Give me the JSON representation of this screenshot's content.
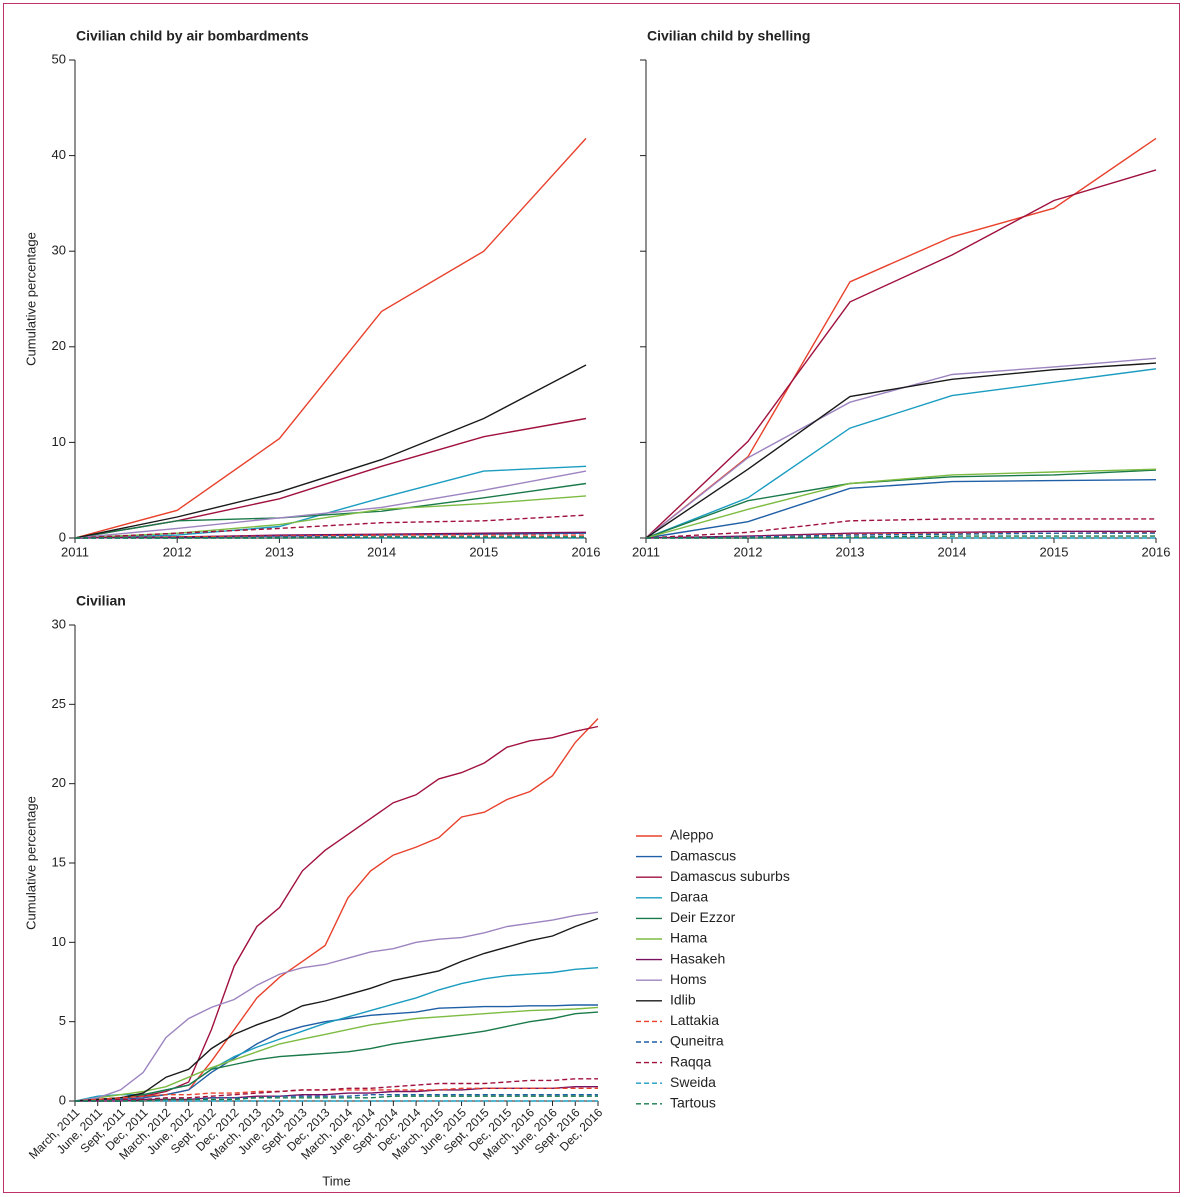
{
  "chart_data": [
    {
      "type": "line",
      "title": "Civilian child by air bombardments",
      "ylabel": "Cumulative percentage",
      "x": [
        2011,
        2012,
        2013,
        2014,
        2015,
        2016
      ],
      "xlim": [
        2011,
        2016
      ],
      "xticks": [
        2011,
        2012,
        2013,
        2014,
        2015,
        2016
      ],
      "ylim": [
        0,
        50
      ],
      "yticks": [
        0,
        10,
        20,
        30,
        40,
        50
      ],
      "series": [
        {
          "color": "#e8412c",
          "values": [
            0,
            2.9,
            10.4,
            23.7,
            30,
            41.8
          ]
        },
        {
          "color": "#1f5fa6",
          "values": [
            0,
            0.1,
            0.2,
            0.3,
            0.4,
            0.5
          ]
        },
        {
          "color": "#a0113e",
          "values": [
            0,
            1.8,
            4.1,
            7.5,
            10.6,
            12.5
          ]
        },
        {
          "color": "#1a9cc0",
          "values": [
            0,
            0.3,
            1.2,
            4.2,
            7,
            7.5
          ]
        },
        {
          "color": "#1a7a4a",
          "values": [
            0,
            1.8,
            2.1,
            2.8,
            4.2,
            5.7
          ]
        },
        {
          "color": "#7dbb42",
          "values": [
            0,
            0.5,
            1.4,
            3,
            3.6,
            4.4
          ]
        },
        {
          "color": "#7a1060",
          "values": [
            0,
            0.1,
            0.3,
            0.4,
            0.5,
            0.6
          ]
        },
        {
          "color": "#9d84c0",
          "values": [
            0,
            1,
            2.1,
            3.2,
            5,
            7
          ]
        },
        {
          "color": "#1a1a1a",
          "values": [
            0,
            2.2,
            4.8,
            8.2,
            12.5,
            18.1
          ]
        },
        {
          "color": "#e8412c",
          "dash": true,
          "values": [
            0,
            0.1,
            0.2,
            0.3,
            0.3,
            0.3
          ]
        },
        {
          "color": "#1f5fa6",
          "dash": true,
          "values": [
            0,
            0,
            0.1,
            0.1,
            0.1,
            0.1
          ]
        },
        {
          "color": "#a0113e",
          "dash": true,
          "values": [
            0,
            0.5,
            1,
            1.6,
            1.8,
            2.4
          ]
        },
        {
          "color": "#1a9cc0",
          "dash": true,
          "values": [
            0,
            0,
            0,
            0,
            0,
            0
          ]
        },
        {
          "color": "#1a7a4a",
          "dash": true,
          "values": [
            0,
            0,
            0,
            0.1,
            0.1,
            0.1
          ]
        }
      ]
    },
    {
      "type": "line",
      "title": "Civilian child by shelling",
      "x": [
        2011,
        2012,
        2013,
        2014,
        2015,
        2016
      ],
      "xlim": [
        2011,
        2016
      ],
      "xticks": [
        2011,
        2012,
        2013,
        2014,
        2015,
        2016
      ],
      "ylim": [
        0,
        50
      ],
      "yticks": [
        0,
        10,
        20,
        30,
        40,
        50
      ],
      "ytick_labels": false,
      "series": [
        {
          "color": "#e8412c",
          "values": [
            0,
            8.5,
            26.8,
            31.5,
            34.5,
            41.8
          ]
        },
        {
          "color": "#1f5fa6",
          "values": [
            0,
            1.7,
            5.2,
            5.9,
            6,
            6.1
          ]
        },
        {
          "color": "#a0113e",
          "values": [
            0,
            10.1,
            24.7,
            29.6,
            35.3,
            38.5
          ]
        },
        {
          "color": "#1a9cc0",
          "values": [
            0,
            4.2,
            11.5,
            14.9,
            16.3,
            17.7
          ]
        },
        {
          "color": "#1a7a4a",
          "values": [
            0,
            3.9,
            5.7,
            6.4,
            6.6,
            7.1
          ]
        },
        {
          "color": "#7dbb42",
          "values": [
            0,
            3,
            5.7,
            6.6,
            6.9,
            7.2
          ]
        },
        {
          "color": "#7a1060",
          "values": [
            0,
            0.2,
            0.5,
            0.6,
            0.7,
            0.7
          ]
        },
        {
          "color": "#9d84c0",
          "values": [
            0,
            8.4,
            14.2,
            17.1,
            17.9,
            18.8
          ]
        },
        {
          "color": "#1a1a1a",
          "values": [
            0,
            7.2,
            14.8,
            16.6,
            17.6,
            18.3
          ]
        },
        {
          "color": "#e8412c",
          "dash": true,
          "values": [
            0,
            0.1,
            0.4,
            0.5,
            0.5,
            0.6
          ]
        },
        {
          "color": "#1f5fa6",
          "dash": true,
          "values": [
            0,
            0.1,
            0.3,
            0.4,
            0.5,
            0.5
          ]
        },
        {
          "color": "#a0113e",
          "dash": true,
          "values": [
            0,
            0.6,
            1.8,
            2,
            2,
            2
          ]
        },
        {
          "color": "#1a9cc0",
          "dash": true,
          "values": [
            0,
            0,
            0,
            0,
            0,
            0
          ]
        },
        {
          "color": "#1a7a4a",
          "dash": true,
          "values": [
            0,
            0,
            0.1,
            0.2,
            0.2,
            0.2
          ]
        }
      ]
    },
    {
      "type": "line",
      "title": "Civilian",
      "ylabel": "Cumulative percentage",
      "xlabel": "Time",
      "legend": "right",
      "categories": [
        "March, 2011",
        "June, 2011",
        "Sept, 2011",
        "Dec, 2011",
        "March, 2012",
        "June, 2012",
        "Sept, 2012",
        "Dec, 2012",
        "March, 2013",
        "June, 2013",
        "Sept, 2013",
        "Dec, 2013",
        "March, 2014",
        "June, 2014",
        "Sept, 2014",
        "Dec, 2014",
        "March, 2015",
        "June, 2015",
        "Sept, 2015",
        "Dec, 2015",
        "March, 2016",
        "June, 2016",
        "Sept, 2016",
        "Dec, 2016"
      ],
      "ylim": [
        0,
        30
      ],
      "yticks": [
        0,
        5,
        10,
        15,
        20,
        25,
        30
      ],
      "series": [
        {
          "name": "Aleppo",
          "color": "#e8412c",
          "values": [
            0,
            0.1,
            0.2,
            0.3,
            0.4,
            0.7,
            2.5,
            4.5,
            6.5,
            7.8,
            8.8,
            9.8,
            12.8,
            14.5,
            15.5,
            16,
            16.6,
            17.9,
            18.2,
            19,
            19.5,
            20.5,
            22.6,
            24.1
          ]
        },
        {
          "name": "Damascus",
          "color": "#1f5fa6",
          "values": [
            0,
            0.1,
            0.1,
            0.2,
            0.4,
            0.7,
            1.8,
            2.7,
            3.6,
            4.3,
            4.7,
            5,
            5.2,
            5.4,
            5.5,
            5.6,
            5.85,
            5.9,
            5.95,
            5.95,
            6,
            6,
            6.05,
            6.05
          ]
        },
        {
          "name": "Damascus suburbs",
          "color": "#a0113e",
          "values": [
            0,
            0.1,
            0.2,
            0.3,
            0.6,
            1.2,
            4.5,
            8.5,
            11,
            12.2,
            14.5,
            15.8,
            16.8,
            17.8,
            18.8,
            19.3,
            20.3,
            20.7,
            21.3,
            22.3,
            22.7,
            22.9,
            23.3,
            23.6
          ]
        },
        {
          "name": "Daraa",
          "color": "#1a9cc0",
          "values": [
            0,
            0.3,
            0.4,
            0.4,
            0.7,
            1,
            2,
            2.8,
            3.4,
            3.9,
            4.4,
            4.9,
            5.3,
            5.7,
            6.1,
            6.5,
            7,
            7.4,
            7.7,
            7.9,
            8,
            8.1,
            8.3,
            8.4
          ]
        },
        {
          "name": "Deir Ezzor",
          "color": "#1a7a4a",
          "values": [
            0,
            0.1,
            0.2,
            0.4,
            0.7,
            1,
            2,
            2.3,
            2.6,
            2.8,
            2.9,
            3,
            3.1,
            3.3,
            3.6,
            3.8,
            4,
            4.2,
            4.4,
            4.7,
            5,
            5.2,
            5.5,
            5.6
          ]
        },
        {
          "name": "Hama",
          "color": "#7dbb42",
          "values": [
            0,
            0.2,
            0.4,
            0.6,
            0.9,
            1.5,
            2.1,
            2.6,
            3.1,
            3.6,
            3.9,
            4.2,
            4.5,
            4.8,
            5,
            5.2,
            5.3,
            5.4,
            5.5,
            5.6,
            5.7,
            5.75,
            5.8,
            5.9
          ]
        },
        {
          "name": "Hasakeh",
          "color": "#7a1060",
          "values": [
            0,
            0,
            0,
            0.1,
            0.1,
            0.1,
            0.2,
            0.2,
            0.3,
            0.3,
            0.4,
            0.4,
            0.5,
            0.5,
            0.6,
            0.6,
            0.7,
            0.7,
            0.8,
            0.8,
            0.8,
            0.8,
            0.9,
            0.9
          ]
        },
        {
          "name": "Homs",
          "color": "#9d84c0",
          "values": [
            0,
            0.2,
            0.7,
            1.8,
            4,
            5.2,
            5.9,
            6.4,
            7.3,
            8,
            8.4,
            8.6,
            9,
            9.4,
            9.6,
            10,
            10.2,
            10.3,
            10.6,
            11,
            11.2,
            11.4,
            11.7,
            11.9
          ]
        },
        {
          "name": "Idlib",
          "color": "#1a1a1a",
          "values": [
            0,
            0.1,
            0.2,
            0.5,
            1.5,
            2,
            3.3,
            4.2,
            4.8,
            5.3,
            6,
            6.3,
            6.7,
            7.1,
            7.6,
            7.9,
            8.2,
            8.8,
            9.3,
            9.7,
            10.1,
            10.4,
            11,
            11.5
          ]
        },
        {
          "name": "Lattakia",
          "color": "#e8412c",
          "dash": true,
          "values": [
            0,
            0.1,
            0.2,
            0.3,
            0.4,
            0.4,
            0.5,
            0.5,
            0.6,
            0.6,
            0.7,
            0.7,
            0.7,
            0.7,
            0.7,
            0.7,
            0.7,
            0.8,
            0.8,
            0.8,
            0.8,
            0.8,
            0.8,
            0.8
          ]
        },
        {
          "name": "Quneitra",
          "color": "#1f5fa6",
          "dash": true,
          "values": [
            0,
            0,
            0,
            0.1,
            0.1,
            0.1,
            0.2,
            0.2,
            0.2,
            0.3,
            0.3,
            0.3,
            0.3,
            0.4,
            0.4,
            0.4,
            0.4,
            0.4,
            0.4,
            0.4,
            0.4,
            0.4,
            0.4,
            0.4
          ]
        },
        {
          "name": "Raqqa",
          "color": "#a0113e",
          "dash": true,
          "values": [
            0,
            0,
            0.1,
            0.1,
            0.2,
            0.2,
            0.3,
            0.4,
            0.5,
            0.6,
            0.7,
            0.7,
            0.8,
            0.8,
            0.9,
            1,
            1.1,
            1.1,
            1.1,
            1.2,
            1.3,
            1.3,
            1.4,
            1.4
          ]
        },
        {
          "name": "Sweida",
          "color": "#1a9cc0",
          "dash": true,
          "values": [
            0,
            0,
            0,
            0,
            0,
            0,
            0,
            0,
            0,
            0,
            0,
            0,
            0,
            0,
            0,
            0,
            0,
            0,
            0,
            0,
            0,
            0,
            0,
            0
          ]
        },
        {
          "name": "Tartous",
          "color": "#1a7a4a",
          "dash": true,
          "values": [
            0,
            0,
            0,
            0,
            0.1,
            0.1,
            0.1,
            0.1,
            0.2,
            0.2,
            0.2,
            0.2,
            0.2,
            0.2,
            0.3,
            0.3,
            0.3,
            0.3,
            0.3,
            0.3,
            0.3,
            0.3,
            0.3,
            0.3
          ]
        }
      ]
    }
  ]
}
